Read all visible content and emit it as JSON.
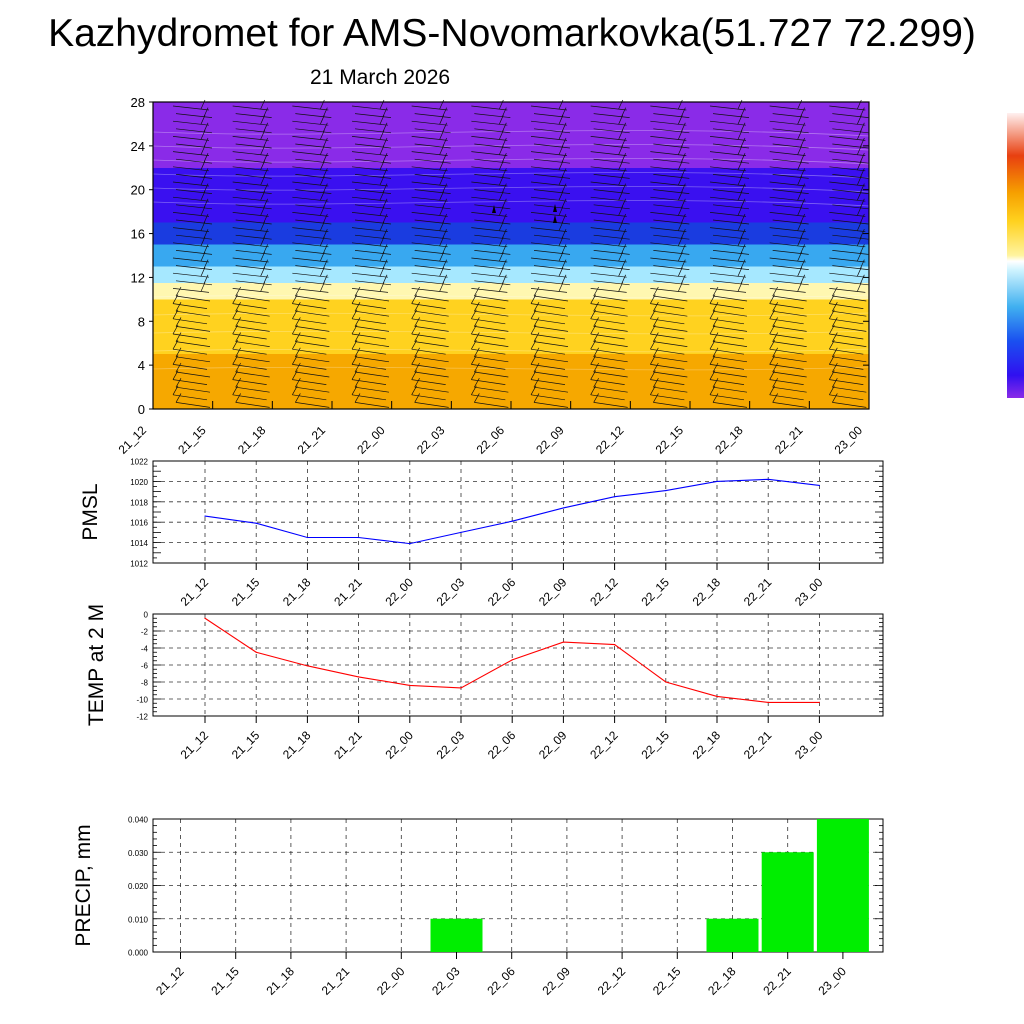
{
  "title": "Kazhydromet for AMS-Novomarkovka(51.727 72.299)",
  "subtitle": "21 March 2026",
  "chart_data": [
    {
      "type": "heatmap",
      "name": "upper-air-section",
      "xlabel": "",
      "ylabel": "",
      "x_tick_labels": [
        "21_12",
        "21_15",
        "21_18",
        "21_21",
        "22_00",
        "22_03",
        "22_06",
        "22_09",
        "22_12",
        "22_15",
        "22_18",
        "22_21",
        "23_00"
      ],
      "y_tick_labels": [
        "0",
        "4",
        "8",
        "12",
        "16",
        "20",
        "24",
        "28"
      ],
      "ylim": [
        0,
        28
      ],
      "color_bands": [
        {
          "from": 0,
          "to": 5,
          "color": "#f6a800"
        },
        {
          "from": 5,
          "to": 10,
          "color": "#ffd21f"
        },
        {
          "from": 10,
          "to": 11.5,
          "color": "#fff7b0"
        },
        {
          "from": 11.5,
          "to": 13,
          "color": "#a6e8ff"
        },
        {
          "from": 13,
          "to": 15,
          "color": "#38a8f0"
        },
        {
          "from": 15,
          "to": 17,
          "color": "#1a3ce0"
        },
        {
          "from": 17,
          "to": 22,
          "color": "#3a10f0"
        },
        {
          "from": 22,
          "to": 28,
          "color": "#8a2be8"
        }
      ]
    },
    {
      "type": "line",
      "name": "pmsl",
      "ylabel": "PMSL",
      "categories": [
        "21_12",
        "21_15",
        "21_18",
        "21_21",
        "22_00",
        "22_03",
        "22_06",
        "22_09",
        "22_12",
        "22_15",
        "22_18",
        "22_21",
        "23_00"
      ],
      "y_tick_labels": [
        "1012",
        "1014",
        "1016",
        "1018",
        "1020",
        "1022"
      ],
      "ylim": [
        1012,
        1022
      ],
      "color": "#0000ff",
      "values": [
        1016.6,
        1015.9,
        1014.5,
        1014.5,
        1013.9,
        1015.0,
        1016.1,
        1017.4,
        1018.5,
        1019.1,
        1020.0,
        1020.2,
        1019.6
      ]
    },
    {
      "type": "line",
      "name": "temp2m",
      "ylabel": "TEMP at 2 M",
      "categories": [
        "21_12",
        "21_15",
        "21_18",
        "21_21",
        "22_00",
        "22_03",
        "22_06",
        "22_09",
        "22_12",
        "22_15",
        "22_18",
        "22_21",
        "23_00"
      ],
      "y_tick_labels": [
        "0",
        "-2",
        "-4",
        "-6",
        "-8",
        "-10",
        "-12"
      ],
      "ylim": [
        -12,
        0
      ],
      "color": "#ff0000",
      "values": [
        -0.5,
        -4.5,
        -6.1,
        -7.4,
        -8.4,
        -8.7,
        -5.4,
        -3.3,
        -3.6,
        -8.0,
        -9.7,
        -10.4,
        -10.4
      ]
    },
    {
      "type": "bar",
      "name": "precip",
      "ylabel": "PRECIP, mm",
      "categories": [
        "21_12",
        "21_15",
        "21_18",
        "21_21",
        "22_00",
        "22_03",
        "22_06",
        "22_09",
        "22_12",
        "22_15",
        "22_18",
        "22_21",
        "23_00"
      ],
      "y_tick_labels": [
        "0.000",
        "0.010",
        "0.020",
        "0.030",
        "0.040"
      ],
      "ylim": [
        0,
        0.04
      ],
      "color": "#00ee00",
      "values": [
        0,
        0,
        0,
        0,
        0,
        0.01,
        0,
        0,
        0,
        0,
        0.01,
        0.03,
        0.04
      ]
    }
  ]
}
